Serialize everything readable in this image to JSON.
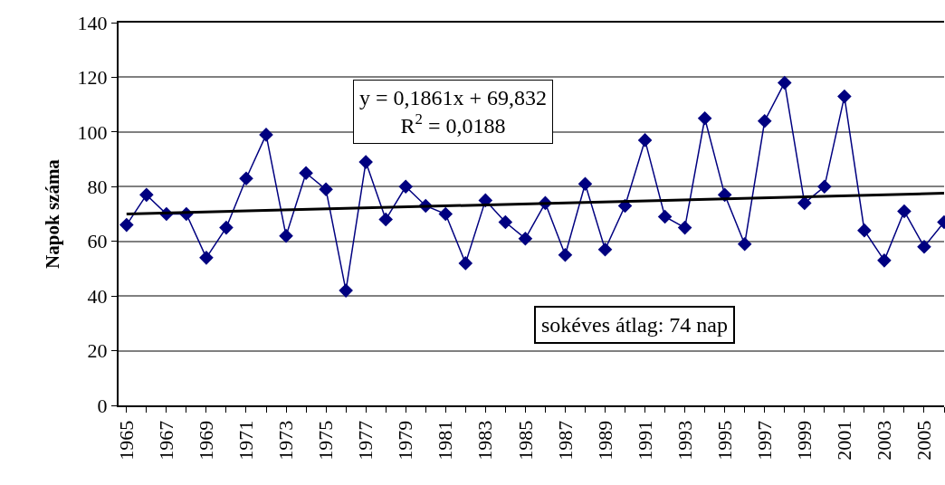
{
  "chart_data": {
    "type": "line",
    "ylabel": "Napok száma",
    "x": [
      1965,
      1966,
      1967,
      1968,
      1969,
      1970,
      1971,
      1972,
      1973,
      1974,
      1975,
      1976,
      1977,
      1978,
      1979,
      1980,
      1981,
      1982,
      1983,
      1984,
      1985,
      1986,
      1987,
      1988,
      1989,
      1990,
      1991,
      1992,
      1993,
      1994,
      1995,
      1996,
      1997,
      1998,
      1999,
      2000,
      2001,
      2002,
      2003,
      2004,
      2005,
      2006
    ],
    "series": [
      {
        "color": "#000080",
        "marker": "diamond",
        "values": [
          66,
          77,
          70,
          70,
          54,
          65,
          83,
          99,
          62,
          85,
          79,
          42,
          89,
          68,
          80,
          73,
          70,
          52,
          75,
          67,
          61,
          74,
          55,
          81,
          57,
          73,
          97,
          69,
          65,
          105,
          77,
          59,
          104,
          118,
          74,
          80,
          113,
          64,
          53,
          71,
          58,
          67
        ]
      },
      {
        "type": "line",
        "color": "#000000",
        "marker": "none",
        "x": [
          1965,
          2006
        ],
        "values": [
          70.0,
          77.6
        ]
      }
    ],
    "xlim": [
      1964.6,
      2006
    ],
    "xticks": [
      1965,
      {
        "value": 1966,
        "label": null
      },
      1967,
      {
        "value": 1968,
        "label": null
      },
      1969,
      {
        "value": 1970,
        "label": null
      },
      1971,
      {
        "value": 1972,
        "label": null
      },
      1973,
      {
        "value": 1974,
        "label": null
      },
      1975,
      {
        "value": 1976,
        "label": null
      },
      1977,
      {
        "value": 1978,
        "label": null
      },
      1979,
      {
        "value": 1980,
        "label": null
      },
      1981,
      {
        "value": 1982,
        "label": null
      },
      1983,
      {
        "value": 1984,
        "label": null
      },
      1985,
      {
        "value": 1986,
        "label": null
      },
      1987,
      {
        "value": 1988,
        "label": null
      },
      1989,
      {
        "value": 1990,
        "label": null
      },
      1991,
      {
        "value": 1992,
        "label": null
      },
      1993,
      {
        "value": 1994,
        "label": null
      },
      1995,
      {
        "value": 1996,
        "label": null
      },
      1997,
      {
        "value": 1998,
        "label": null
      },
      1999,
      {
        "value": 2000,
        "label": null
      },
      2001,
      {
        "value": 2002,
        "label": null
      },
      2003,
      {
        "value": 2004,
        "label": null
      },
      2005,
      {
        "value": 2006,
        "label": null
      }
    ],
    "ylim": [
      0,
      140
    ],
    "yticks": [
      0,
      20,
      40,
      60,
      80,
      100,
      120,
      140
    ],
    "grid": "y",
    "line_style": "solid",
    "annotations": [
      "y = 0,1861x + 69,832\nR$^{2}$ = 0,0188",
      "sokéves átlag: 74 nap"
    ]
  }
}
